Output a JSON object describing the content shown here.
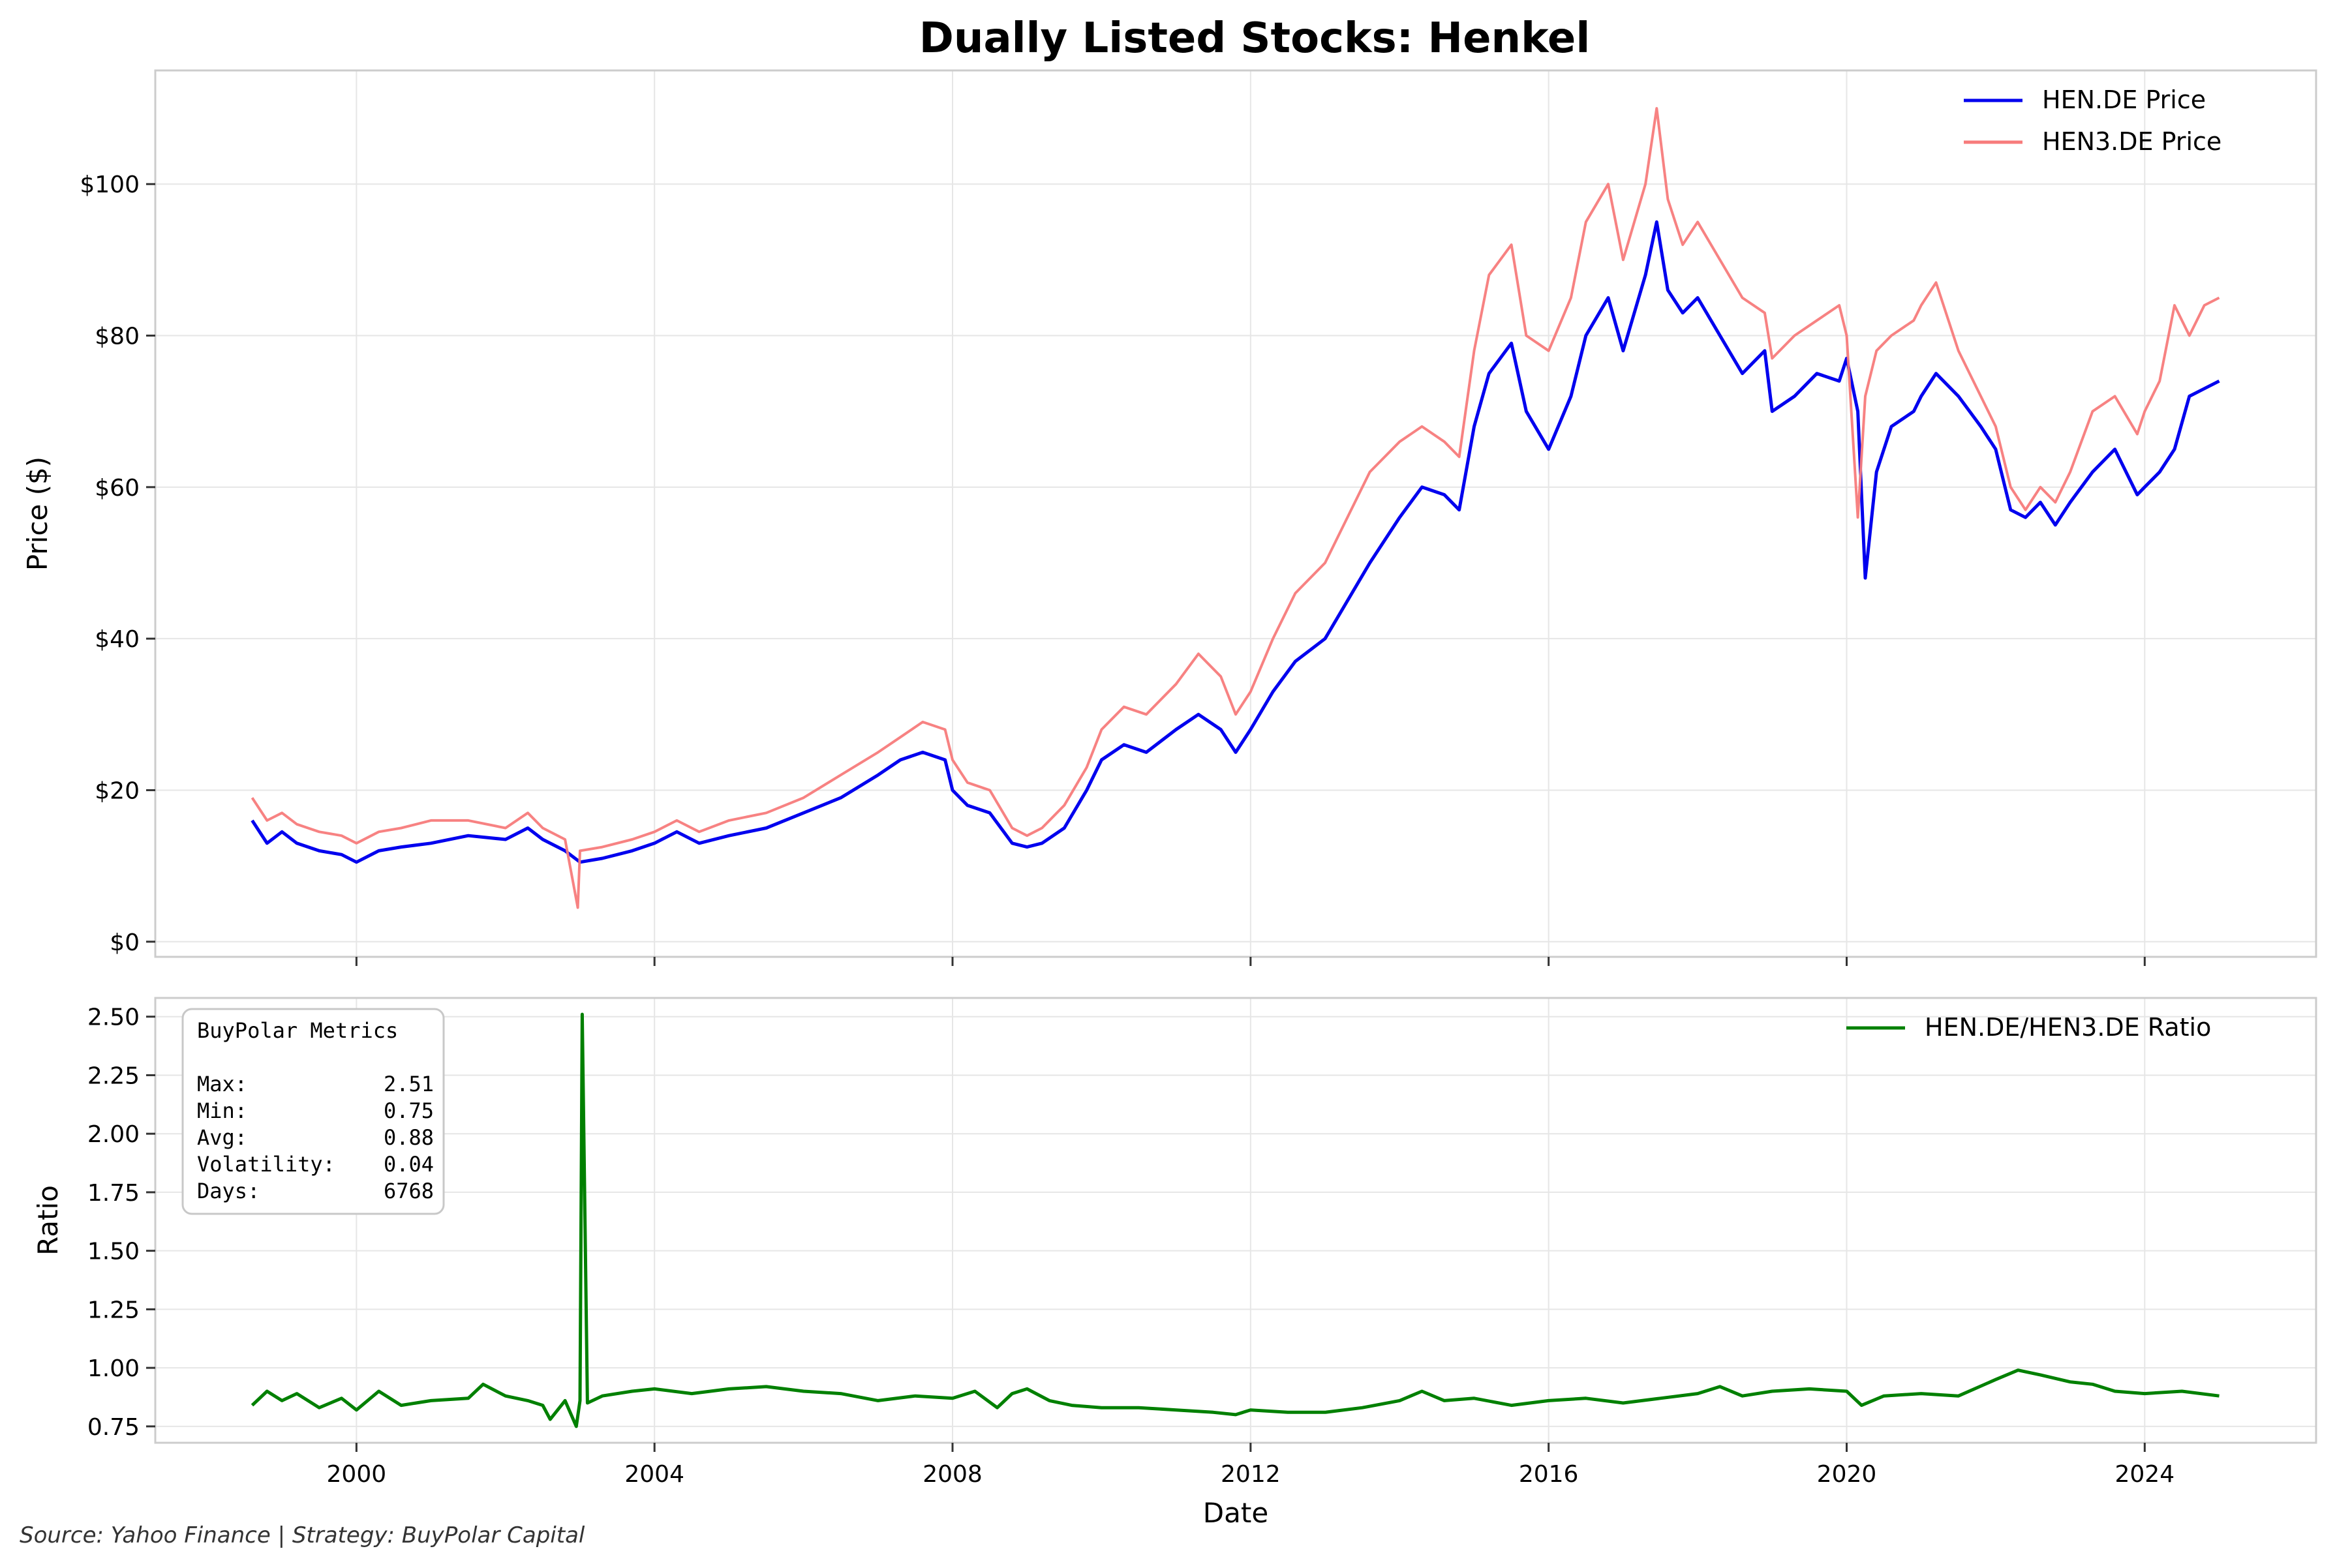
{
  "colors": {
    "hen_price": "#0000ee",
    "hen3_price": "#f77b7b",
    "ratio": "#008000",
    "grid": "#e6e6e6",
    "frame": "#cccccc"
  },
  "footer": "Source: Yahoo Finance | Strategy: BuyPolar Capital",
  "chart_data": [
    {
      "type": "line",
      "title": "Dually Listed Stocks: Henkel",
      "xlabel": "",
      "ylabel": "Price ($)",
      "xlim": [
        1997.3,
        2026.3
      ],
      "ylim": [
        -2,
        115
      ],
      "x_ticks": [
        2000,
        2004,
        2008,
        2012,
        2016,
        2020,
        2024
      ],
      "y_ticks": [
        0,
        20,
        40,
        60,
        80,
        100
      ],
      "y_tick_labels": [
        "$0",
        "$20",
        "$40",
        "$60",
        "$80",
        "$100"
      ],
      "grid": true,
      "legend_position": "top-right",
      "series": [
        {
          "name": "HEN.DE Price",
          "color": "#0000ee",
          "x": [
            1998.6,
            1998.8,
            1999.0,
            1999.2,
            1999.5,
            1999.8,
            2000.0,
            2000.3,
            2000.6,
            2001.0,
            2001.5,
            2002.0,
            2002.3,
            2002.5,
            2002.8,
            2003.0,
            2003.3,
            2003.7,
            2004.0,
            2004.3,
            2004.6,
            2005.0,
            2005.5,
            2006.0,
            2006.5,
            2007.0,
            2007.3,
            2007.6,
            2007.9,
            2008.0,
            2008.2,
            2008.5,
            2008.8,
            2009.0,
            2009.2,
            2009.5,
            2009.8,
            2010.0,
            2010.3,
            2010.6,
            2011.0,
            2011.3,
            2011.6,
            2011.8,
            2012.0,
            2012.3,
            2012.6,
            2013.0,
            2013.3,
            2013.6,
            2014.0,
            2014.3,
            2014.6,
            2014.8,
            2015.0,
            2015.2,
            2015.5,
            2015.7,
            2016.0,
            2016.3,
            2016.5,
            2016.8,
            2017.0,
            2017.3,
            2017.45,
            2017.6,
            2017.8,
            2018.0,
            2018.3,
            2018.6,
            2018.9,
            2019.0,
            2019.3,
            2019.6,
            2019.9,
            2020.0,
            2020.15,
            2020.25,
            2020.4,
            2020.6,
            2020.9,
            2021.0,
            2021.2,
            2021.5,
            2021.8,
            2022.0,
            2022.2,
            2022.4,
            2022.6,
            2022.8,
            2023.0,
            2023.3,
            2023.6,
            2023.9,
            2024.0,
            2024.2,
            2024.4,
            2024.6,
            2024.8,
            2025.0
          ],
          "y": [
            16,
            13,
            14.5,
            13,
            12,
            11.5,
            10.5,
            12,
            12.5,
            13,
            14,
            13.5,
            15,
            13.5,
            12,
            10.5,
            11,
            12,
            13,
            14.5,
            13,
            14,
            15,
            17,
            19,
            22,
            24,
            25,
            24,
            20,
            18,
            17,
            13,
            12.5,
            13,
            15,
            20,
            24,
            26,
            25,
            28,
            30,
            28,
            25,
            28,
            33,
            37,
            40,
            45,
            50,
            56,
            60,
            59,
            57,
            68,
            75,
            79,
            70,
            65,
            72,
            80,
            85,
            78,
            88,
            95,
            86,
            83,
            85,
            80,
            75,
            78,
            70,
            72,
            75,
            74,
            77,
            70,
            48,
            62,
            68,
            70,
            72,
            75,
            72,
            68,
            65,
            57,
            56,
            58,
            55,
            58,
            62,
            65,
            59,
            60,
            62,
            65,
            72,
            73,
            74
          ]
        },
        {
          "name": "HEN3.DE Price",
          "color": "#f77b7b",
          "x": [
            1998.6,
            1998.8,
            1999.0,
            1999.2,
            1999.5,
            1999.8,
            2000.0,
            2000.3,
            2000.6,
            2001.0,
            2001.5,
            2002.0,
            2002.3,
            2002.5,
            2002.8,
            2002.97,
            2003.0,
            2003.3,
            2003.7,
            2004.0,
            2004.3,
            2004.6,
            2005.0,
            2005.5,
            2006.0,
            2006.5,
            2007.0,
            2007.3,
            2007.6,
            2007.9,
            2008.0,
            2008.2,
            2008.5,
            2008.8,
            2009.0,
            2009.2,
            2009.5,
            2009.8,
            2010.0,
            2010.3,
            2010.6,
            2011.0,
            2011.3,
            2011.6,
            2011.8,
            2012.0,
            2012.3,
            2012.6,
            2013.0,
            2013.3,
            2013.6,
            2014.0,
            2014.3,
            2014.6,
            2014.8,
            2015.0,
            2015.2,
            2015.5,
            2015.7,
            2016.0,
            2016.3,
            2016.5,
            2016.8,
            2017.0,
            2017.3,
            2017.45,
            2017.6,
            2017.8,
            2018.0,
            2018.3,
            2018.6,
            2018.9,
            2019.0,
            2019.3,
            2019.6,
            2019.9,
            2020.0,
            2020.15,
            2020.25,
            2020.4,
            2020.6,
            2020.9,
            2021.0,
            2021.2,
            2021.5,
            2021.8,
            2022.0,
            2022.2,
            2022.4,
            2022.6,
            2022.8,
            2023.0,
            2023.3,
            2023.6,
            2023.9,
            2024.0,
            2024.2,
            2024.4,
            2024.6,
            2024.8,
            2025.0
          ],
          "y": [
            19,
            16,
            17,
            15.5,
            14.5,
            14,
            13,
            14.5,
            15,
            16,
            16,
            15,
            17,
            15,
            13.5,
            4.5,
            12,
            12.5,
            13.5,
            14.5,
            16,
            14.5,
            16,
            17,
            19,
            22,
            25,
            27,
            29,
            28,
            24,
            21,
            20,
            15,
            14,
            15,
            18,
            23,
            28,
            31,
            30,
            34,
            38,
            35,
            30,
            33,
            40,
            46,
            50,
            56,
            62,
            66,
            68,
            66,
            64,
            78,
            88,
            92,
            80,
            78,
            85,
            95,
            100,
            90,
            100,
            110,
            98,
            92,
            95,
            90,
            85,
            83,
            77,
            80,
            82,
            84,
            80,
            56,
            72,
            78,
            80,
            82,
            84,
            87,
            78,
            72,
            68,
            60,
            57,
            60,
            58,
            62,
            70,
            72,
            67,
            70,
            74,
            84,
            80,
            84,
            85
          ]
        }
      ]
    },
    {
      "type": "line",
      "title": "",
      "xlabel": "Date",
      "ylabel": "Ratio",
      "xlim": [
        1997.3,
        2026.3
      ],
      "ylim": [
        0.68,
        2.58
      ],
      "x_ticks": [
        2000,
        2004,
        2008,
        2012,
        2016,
        2020,
        2024
      ],
      "x_tick_labels": [
        "2000",
        "2004",
        "2008",
        "2012",
        "2016",
        "2020",
        "2024"
      ],
      "y_ticks": [
        0.75,
        1.0,
        1.25,
        1.5,
        1.75,
        2.0,
        2.25,
        2.5
      ],
      "y_tick_labels": [
        "0.75",
        "1.00",
        "1.25",
        "1.50",
        "1.75",
        "2.00",
        "2.25",
        "2.50"
      ],
      "grid": true,
      "legend_position": "top-right",
      "series": [
        {
          "name": "HEN.DE/HEN3.DE Ratio",
          "color": "#008000",
          "x": [
            1998.6,
            1998.8,
            1999.0,
            1999.2,
            1999.5,
            1999.8,
            2000.0,
            2000.3,
            2000.6,
            2001.0,
            2001.5,
            2001.7,
            2002.0,
            2002.3,
            2002.5,
            2002.6,
            2002.8,
            2002.95,
            2003.0,
            2003.03,
            2003.1,
            2003.3,
            2003.7,
            2004.0,
            2004.5,
            2005.0,
            2005.5,
            2006.0,
            2006.5,
            2007.0,
            2007.5,
            2008.0,
            2008.3,
            2008.6,
            2008.8,
            2009.0,
            2009.3,
            2009.6,
            2010.0,
            2010.5,
            2011.0,
            2011.5,
            2011.8,
            2012.0,
            2012.5,
            2013.0,
            2013.5,
            2014.0,
            2014.3,
            2014.6,
            2015.0,
            2015.5,
            2016.0,
            2016.5,
            2017.0,
            2017.5,
            2018.0,
            2018.3,
            2018.6,
            2019.0,
            2019.5,
            2020.0,
            2020.2,
            2020.5,
            2021.0,
            2021.5,
            2022.0,
            2022.3,
            2022.6,
            2023.0,
            2023.3,
            2023.6,
            2024.0,
            2024.5,
            2025.0
          ],
          "y": [
            0.84,
            0.9,
            0.86,
            0.89,
            0.83,
            0.87,
            0.82,
            0.9,
            0.84,
            0.86,
            0.87,
            0.93,
            0.88,
            0.86,
            0.84,
            0.78,
            0.86,
            0.75,
            0.86,
            2.51,
            0.85,
            0.88,
            0.9,
            0.91,
            0.89,
            0.91,
            0.92,
            0.9,
            0.89,
            0.86,
            0.88,
            0.87,
            0.9,
            0.83,
            0.89,
            0.91,
            0.86,
            0.84,
            0.83,
            0.83,
            0.82,
            0.81,
            0.8,
            0.82,
            0.81,
            0.81,
            0.83,
            0.86,
            0.9,
            0.86,
            0.87,
            0.84,
            0.86,
            0.87,
            0.85,
            0.87,
            0.89,
            0.92,
            0.88,
            0.9,
            0.91,
            0.9,
            0.84,
            0.88,
            0.89,
            0.88,
            0.95,
            0.99,
            0.97,
            0.94,
            0.93,
            0.9,
            0.89,
            0.9,
            0.88
          ]
        }
      ],
      "annotations": {
        "metrics_title": "BuyPolar Metrics",
        "metrics": [
          {
            "label": "Max:",
            "value": "2.51"
          },
          {
            "label": "Min:",
            "value": "0.75"
          },
          {
            "label": "Avg:",
            "value": "0.88"
          },
          {
            "label": "Volatility:",
            "value": "0.04"
          },
          {
            "label": "Days:",
            "value": "6768"
          }
        ]
      }
    }
  ]
}
